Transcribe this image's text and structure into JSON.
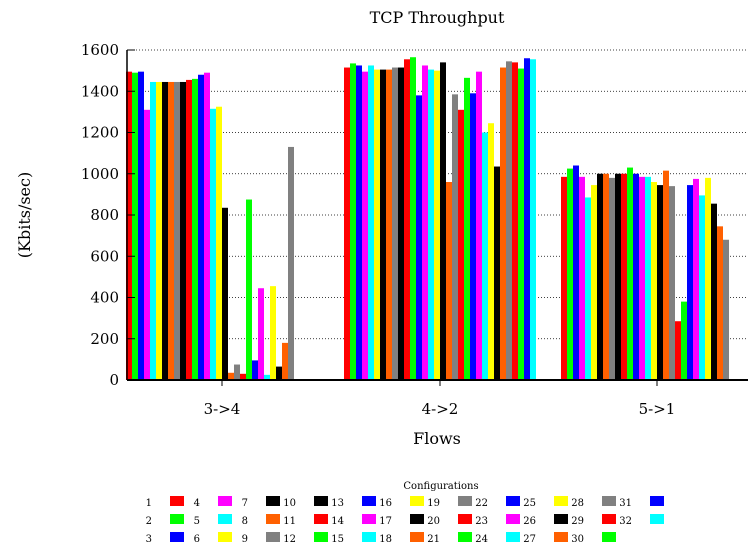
{
  "chart_data": {
    "type": "bar",
    "title": "TCP Throughput",
    "xlabel": "Flows",
    "ylabel": "(Kbits/sec)",
    "ylim": [
      0,
      1600
    ],
    "yticks": [
      0,
      200,
      400,
      600,
      800,
      1000,
      1200,
      1400,
      1600
    ],
    "grid": "horizontal dotted",
    "categories": [
      "3->4",
      "4->2",
      "5->1"
    ],
    "legend_title": "Configurations",
    "legend_placement": "bottom",
    "series": [
      {
        "name": "1",
        "color": "#ff0000",
        "values": [
          1495,
          1515,
          985
        ]
      },
      {
        "name": "2",
        "color": "#00ff00",
        "values": [
          1490,
          1535,
          1025
        ]
      },
      {
        "name": "3",
        "color": "#0000ff",
        "values": [
          1495,
          1525,
          1040
        ]
      },
      {
        "name": "4",
        "color": "#ff00ff",
        "values": [
          1310,
          1495,
          985
        ]
      },
      {
        "name": "5",
        "color": "#00ffff",
        "values": [
          1445,
          1525,
          885
        ]
      },
      {
        "name": "6",
        "color": "#ffff00",
        "values": [
          1445,
          1505,
          945
        ]
      },
      {
        "name": "7",
        "color": "#000000",
        "values": [
          1445,
          1505,
          1000
        ]
      },
      {
        "name": "8",
        "color": "#ff6000",
        "values": [
          1445,
          1505,
          1000
        ]
      },
      {
        "name": "9",
        "color": "#808080",
        "values": [
          1445,
          1515,
          980
        ]
      },
      {
        "name": "10",
        "color": "#000000",
        "values": [
          1445,
          1515,
          1000
        ]
      },
      {
        "name": "11",
        "color": "#ff0000",
        "values": [
          1455,
          1555,
          1000
        ]
      },
      {
        "name": "12",
        "color": "#00ff00",
        "values": [
          1460,
          1565,
          1030
        ]
      },
      {
        "name": "13",
        "color": "#0000ff",
        "values": [
          1480,
          1380,
          1000
        ]
      },
      {
        "name": "14",
        "color": "#ff00ff",
        "values": [
          1490,
          1525,
          985
        ]
      },
      {
        "name": "15",
        "color": "#00ffff",
        "values": [
          1315,
          1505,
          985
        ]
      },
      {
        "name": "16",
        "color": "#ffff00",
        "values": [
          1325,
          1500,
          960
        ]
      },
      {
        "name": "17",
        "color": "#000000",
        "values": [
          835,
          1540,
          945
        ]
      },
      {
        "name": "18",
        "color": "#ff6000",
        "values": [
          35,
          960,
          1015
        ]
      },
      {
        "name": "19",
        "color": "#808080",
        "values": [
          75,
          1385,
          940
        ]
      },
      {
        "name": "20",
        "color": "#ff0000",
        "values": [
          30,
          1310,
          285
        ]
      },
      {
        "name": "21",
        "color": "#00ff00",
        "values": [
          875,
          1465,
          380
        ]
      },
      {
        "name": "22",
        "color": "#0000ff",
        "values": [
          95,
          1390,
          945
        ]
      },
      {
        "name": "23",
        "color": "#ff00ff",
        "values": [
          445,
          1495,
          975
        ]
      },
      {
        "name": "24",
        "color": "#00ffff",
        "values": [
          25,
          1200,
          895
        ]
      },
      {
        "name": "25",
        "color": "#ffff00",
        "values": [
          455,
          1245,
          980
        ]
      },
      {
        "name": "26",
        "color": "#000000",
        "values": [
          65,
          1035,
          855
        ]
      },
      {
        "name": "27",
        "color": "#ff6000",
        "values": [
          180,
          1515,
          745
        ]
      },
      {
        "name": "28",
        "color": "#808080",
        "values": [
          1130,
          1545,
          680
        ]
      },
      {
        "name": "29",
        "color": "#ff0000",
        "values": [
          0,
          1540,
          0
        ]
      },
      {
        "name": "30",
        "color": "#00ff00",
        "values": [
          0,
          1510,
          0
        ]
      },
      {
        "name": "31",
        "color": "#0000ff",
        "values": [
          0,
          1560,
          0
        ]
      },
      {
        "name": "32",
        "color": "#00ffff",
        "values": [
          0,
          1555,
          0
        ]
      }
    ]
  }
}
